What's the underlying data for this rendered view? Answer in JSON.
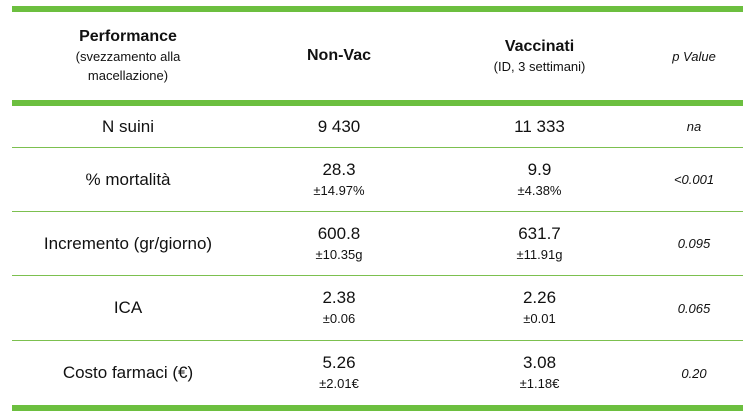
{
  "header": {
    "col1_title": "Performance",
    "col1_sub1": "(svezzamento alla",
    "col1_sub2": "macellazione)",
    "col2_title": "Non-Vac",
    "col3_title": "Vaccinati",
    "col3_sub": "(ID, 3 settimani)",
    "col4_title": "p Value"
  },
  "rows": [
    {
      "label": "N suini",
      "nonvac": "9 430",
      "nonvac_sd": "",
      "vacc": "11 333",
      "vacc_sd": "",
      "p": "na"
    },
    {
      "label": "% mortalità",
      "nonvac": "28.3",
      "nonvac_sd": "±14.97%",
      "vacc": "9.9",
      "vacc_sd": "±4.38%",
      "p": "<0.001"
    },
    {
      "label": "Incremento (gr/giorno)",
      "nonvac": "600.8",
      "nonvac_sd": "±10.35g",
      "vacc": "631.7",
      "vacc_sd": "±11.91g",
      "p": "0.095"
    },
    {
      "label": "ICA",
      "nonvac": "2.38",
      "nonvac_sd": "±0.06",
      "vacc": "2.26",
      "vacc_sd": "±0.01",
      "p": "0.065"
    },
    {
      "label": "Costo farmaci (€)",
      "nonvac": "5.26",
      "nonvac_sd": "±2.01€",
      "vacc": "3.08",
      "vacc_sd": "±1.18€",
      "p": "0.20"
    }
  ],
  "colors": {
    "rule_green": "#6cbf3f"
  }
}
